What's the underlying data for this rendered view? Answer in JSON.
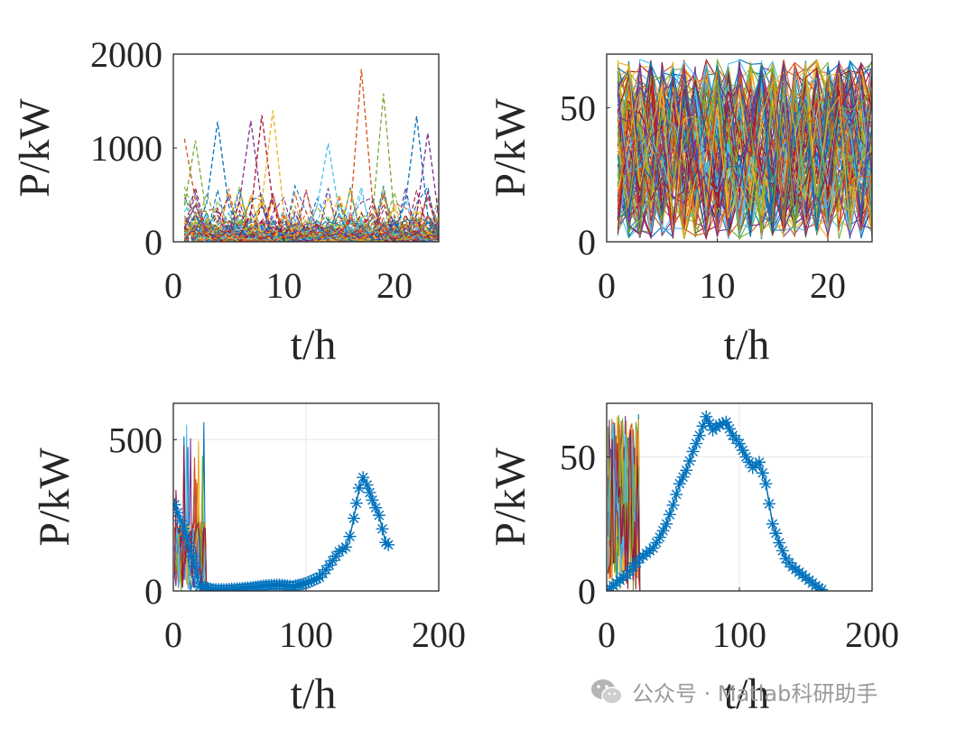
{
  "chart_data": [
    {
      "type": "line",
      "description_style": "dashed multi-series",
      "xlabel": "t/h",
      "ylabel": "P/kW",
      "xlim": [
        0,
        24
      ],
      "ylim": [
        0,
        2000
      ],
      "xticks": [
        "0",
        "10",
        "20"
      ],
      "yticks": [
        "0",
        "1000",
        "2000"
      ],
      "grid": false,
      "peaks": [
        {
          "x": 1,
          "y": 1100
        },
        {
          "x": 2,
          "y": 1080
        },
        {
          "x": 4,
          "y": 1280
        },
        {
          "x": 7,
          "y": 1290
        },
        {
          "x": 8,
          "y": 1350
        },
        {
          "x": 9,
          "y": 1400
        },
        {
          "x": 14,
          "y": 1050
        },
        {
          "x": 17,
          "y": 1840
        },
        {
          "x": 19,
          "y": 1580
        },
        {
          "x": 22,
          "y": 1340
        },
        {
          "x": 23,
          "y": 1160
        }
      ]
    },
    {
      "type": "line",
      "description_style": "dense multi-series",
      "xlabel": "t/h",
      "ylabel": "P/kW",
      "xlim": [
        0,
        24
      ],
      "ylim": [
        0,
        70
      ],
      "xticks": [
        "0",
        "10",
        "20"
      ],
      "yticks": [
        "0",
        "50"
      ],
      "grid": false
    },
    {
      "type": "line",
      "description_style": "multi-series lines plus marker series",
      "xlabel": "t/h",
      "ylabel": "P/kW",
      "xlim": [
        0,
        200
      ],
      "ylim": [
        0,
        620
      ],
      "xticks": [
        "0",
        "100",
        "200"
      ],
      "yticks": [
        "0",
        "500"
      ],
      "grid": true,
      "series": [
        {
          "name": "profile",
          "marker": "*",
          "x": [
            1,
            10,
            20,
            30,
            40,
            50,
            60,
            70,
            80,
            90,
            100,
            110,
            115,
            120,
            125,
            130,
            133,
            136,
            140,
            143,
            146,
            150,
            155,
            160,
            164
          ],
          "y": [
            285,
            180,
            15,
            5,
            5,
            8,
            12,
            18,
            20,
            15,
            25,
            45,
            70,
            100,
            130,
            145,
            180,
            240,
            340,
            375,
            350,
            300,
            250,
            160,
            145
          ]
        }
      ]
    },
    {
      "type": "line",
      "description_style": "multi-series lines plus marker series",
      "xlabel": "t/h",
      "ylabel": "P/kW",
      "xlim": [
        0,
        200
      ],
      "ylim": [
        0,
        70
      ],
      "xticks": [
        "0",
        "100",
        "200"
      ],
      "yticks": [
        "0",
        "50"
      ],
      "grid": true,
      "series": [
        {
          "name": "profile",
          "marker": "*",
          "x": [
            0,
            5,
            10,
            15,
            20,
            25,
            30,
            35,
            40,
            45,
            50,
            55,
            60,
            65,
            70,
            75,
            80,
            85,
            90,
            95,
            100,
            105,
            110,
            115,
            120,
            125,
            130,
            135,
            140,
            145,
            150,
            155,
            160,
            164
          ],
          "y": [
            0,
            2,
            4,
            6,
            9,
            12,
            14,
            16,
            20,
            25,
            32,
            40,
            45,
            52,
            58,
            65,
            60,
            62,
            63,
            58,
            55,
            50,
            46,
            48,
            40,
            25,
            18,
            12,
            9,
            7,
            5,
            3,
            1,
            0
          ]
        }
      ]
    }
  ],
  "watermark": {
    "text": "公众号 · Matlab科研助手"
  }
}
